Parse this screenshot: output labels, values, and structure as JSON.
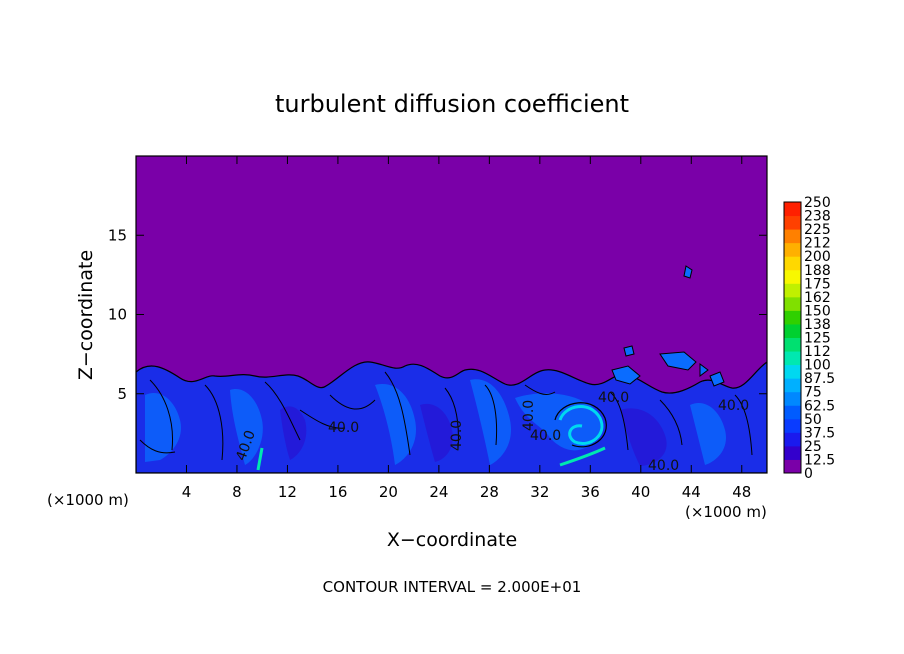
{
  "chart_data": {
    "type": "heatmap",
    "title": "turbulent diffusion coefficient",
    "xlabel": "X−coordinate",
    "ylabel": "Z−coordinate",
    "x_unit_label": "(×1000 m)",
    "y_unit_label": "(×1000 m)",
    "xlim": [
      0,
      50
    ],
    "ylim": [
      0,
      20
    ],
    "x_ticks": [
      4,
      8,
      12,
      16,
      20,
      24,
      28,
      32,
      36,
      40,
      44,
      48
    ],
    "y_ticks": [
      5,
      10,
      15
    ],
    "colorbar": {
      "levels": [
        "0",
        "12.5",
        "25",
        "37.5",
        "50",
        "62.5",
        "75",
        "87.5",
        "100",
        "112",
        "125",
        "138",
        "150",
        "162",
        "175",
        "188",
        "200",
        "212",
        "225",
        "238",
        "250"
      ],
      "colors": [
        "#7a00a8",
        "#3300cc",
        "#1a1aee",
        "#0a3cff",
        "#005cff",
        "#0088ff",
        "#00b0ff",
        "#00d8f0",
        "#00e8b0",
        "#00e070",
        "#00d030",
        "#30d000",
        "#80e000",
        "#c0f000",
        "#f8f800",
        "#ffd800",
        "#ffb000",
        "#ff8000",
        "#ff4000",
        "#ff2000",
        "#f08080"
      ]
    },
    "contour_labels": [
      "40.0",
      "40.0",
      "40.0",
      "40.0",
      "40.0",
      "40.0",
      "40.0",
      "40.0"
    ],
    "approx_mixed_layer_top_km": 6,
    "background_value_above_layer": 0,
    "footer": "CONTOUR INTERVAL = 2.000E+01"
  }
}
